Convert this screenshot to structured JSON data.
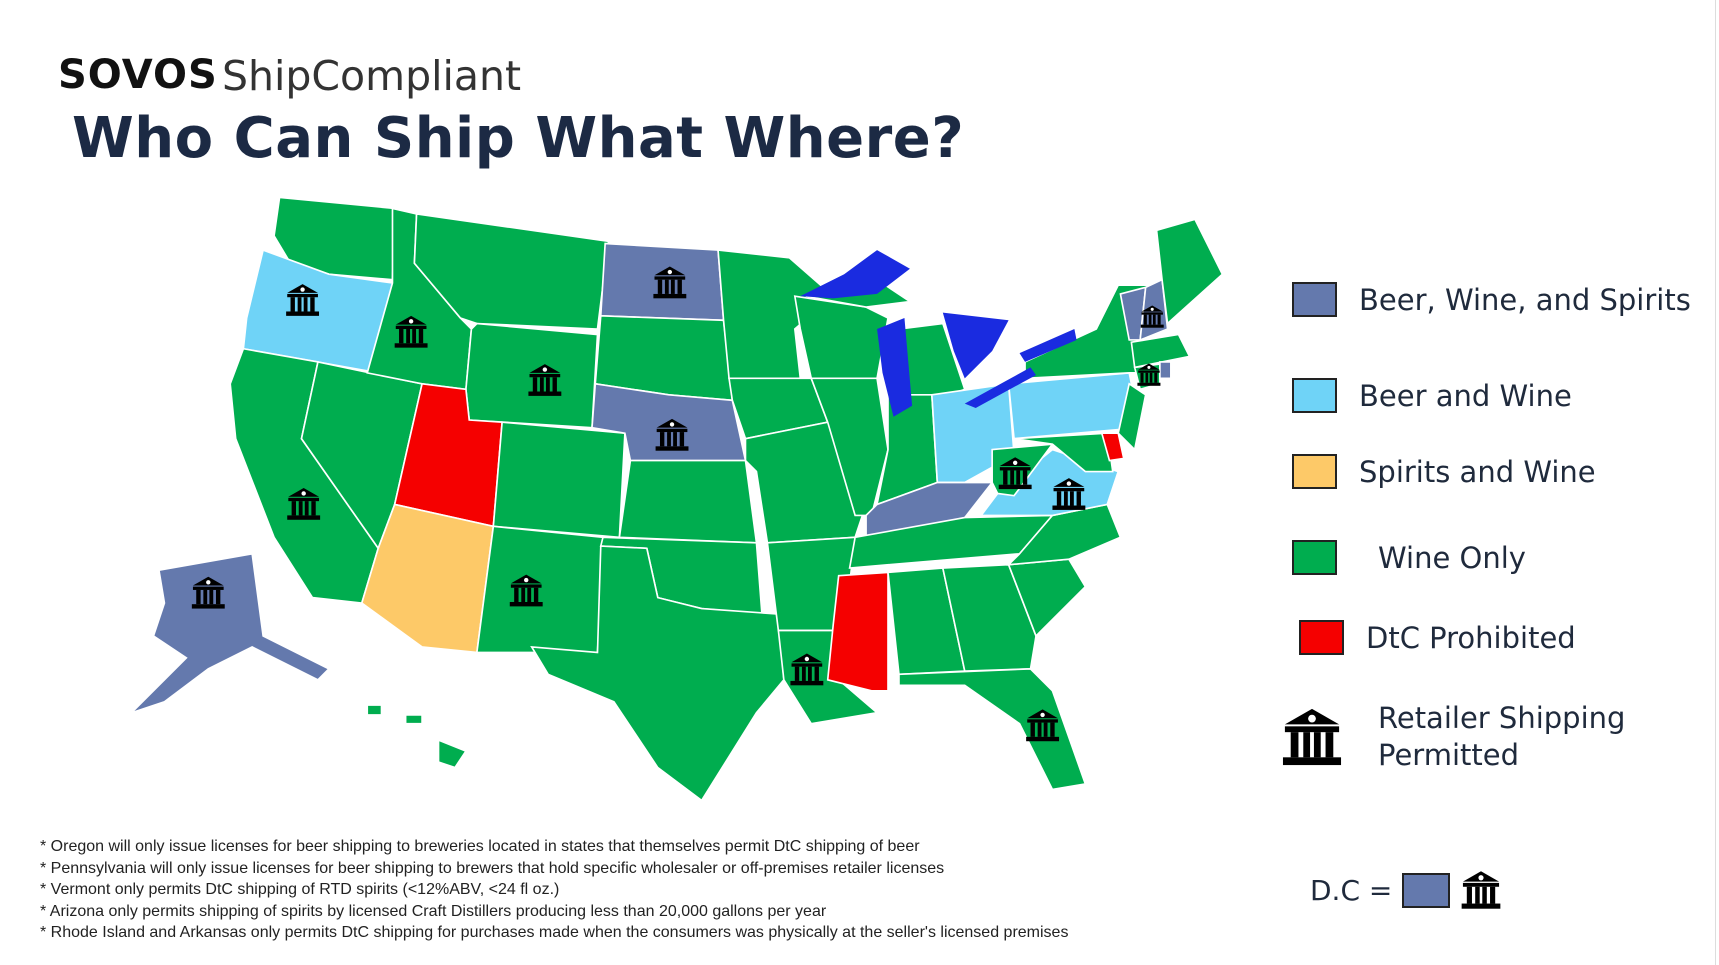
{
  "header": {
    "logo": "SOVOS",
    "product": "ShipCompliant",
    "title": "Who Can Ship What Where?"
  },
  "colors": {
    "beer_wine_spirits": "#6479ad",
    "beer_wine": "#6fd3f7",
    "spirits_wine": "#fdc968",
    "wine_only": "#00ad4f",
    "prohibited": "#f50000",
    "lakes": "#1a2be0"
  },
  "legend": [
    {
      "label": "Beer, Wine, and Spirits",
      "color": "#6479ad"
    },
    {
      "label": "Beer and Wine",
      "color": "#6fd3f7"
    },
    {
      "label": "Spirits and Wine",
      "color": "#fdc968"
    },
    {
      "label": "Wine Only",
      "color": "#00ad4f"
    },
    {
      "label": "DtC Prohibited",
      "color": "#f50000"
    }
  ],
  "retailer_legend": {
    "line1": "Retailer Shipping",
    "line2": "Permitted",
    "icon": "bank-icon"
  },
  "dc": {
    "label": "D.C =",
    "color": "#6479ad",
    "icon": "bank-icon"
  },
  "states": {
    "beer_wine_spirits": [
      "ND",
      "NE",
      "KY",
      "AK",
      "VT",
      "NH",
      "RI"
    ],
    "beer_wine": [
      "OR",
      "OH",
      "PA",
      "VA"
    ],
    "spirits_wine": [
      "AZ"
    ],
    "prohibited": [
      "UT",
      "MS",
      "DE"
    ],
    "retailer_shipping": [
      "OR",
      "ID",
      "WY",
      "ND",
      "NE",
      "CA",
      "AK",
      "NM",
      "LA",
      "FL",
      "WV",
      "VA",
      "NH",
      "MA"
    ]
  },
  "notes": [
    "* Oregon will only issue licenses for beer shipping to breweries located in states that themselves permit DtC shipping of beer",
    "* Pennsylvania will only issue licenses for beer shipping to brewers that hold specific wholesaler or off-premises retailer licenses",
    "* Vermont only permits DtC shipping of RTD spirits (<12%ABV, <24 fl oz.)",
    "* Arizona only permits shipping of spirits by licensed Craft Distillers producing less than 20,000 gallons per year",
    "* Rhode Island and Arkansas only permits DtC shipping for purchases made when the consumers was physically at the seller's licensed premises"
  ]
}
